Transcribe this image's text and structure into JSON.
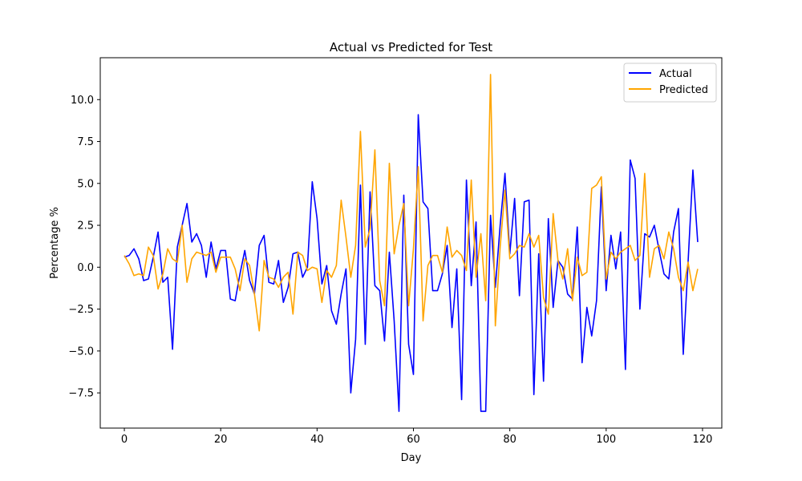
{
  "chart_data": {
    "type": "line",
    "title": "Actual vs Predicted for Test",
    "xlabel": "Day",
    "ylabel": "Percentage %",
    "xlim": [
      -5,
      124
    ],
    "ylim": [
      -9.6,
      12.5
    ],
    "xticks": [
      0,
      20,
      40,
      60,
      80,
      100,
      120
    ],
    "xtick_labels": [
      "0",
      "20",
      "40",
      "60",
      "80",
      "100",
      "120"
    ],
    "yticks": [
      -7.5,
      -5.0,
      -2.5,
      0.0,
      2.5,
      5.0,
      7.5,
      10.0
    ],
    "ytick_labels": [
      "−7.5",
      "−5.0",
      "−2.5",
      "0.0",
      "2.5",
      "5.0",
      "7.5",
      "10.0"
    ],
    "grid": false,
    "legend_position": "top-right",
    "series": [
      {
        "name": "Actual",
        "color": "#0000ff",
        "values": [
          0.6,
          0.7,
          1.1,
          0.5,
          -0.8,
          -0.7,
          0.6,
          2.1,
          -0.9,
          -0.6,
          -4.9,
          1.2,
          2.5,
          3.8,
          1.5,
          2.0,
          1.3,
          -0.6,
          1.5,
          -0.1,
          1.0,
          1.0,
          -1.9,
          -2.0,
          -0.4,
          1.0,
          -0.8,
          -1.6,
          1.3,
          1.9,
          -0.9,
          -1.0,
          0.4,
          -2.1,
          -1.2,
          0.8,
          0.9,
          -0.6,
          0.0,
          5.1,
          2.9,
          -1.0,
          0.1,
          -2.6,
          -3.4,
          -1.6,
          -0.1,
          -7.5,
          -4.3,
          4.9,
          -4.6,
          4.5,
          -1.1,
          -1.4,
          -4.4,
          0.9,
          -3.2,
          -8.6,
          4.3,
          -4.6,
          -6.4,
          9.1,
          3.9,
          3.5,
          -1.4,
          -1.4,
          -0.4,
          1.3,
          -3.6,
          -0.1,
          -7.9,
          5.2,
          -1.1,
          2.7,
          -8.6,
          -8.6,
          3.1,
          -1.2,
          2.5,
          5.6,
          0.8,
          4.1,
          -1.7,
          3.9,
          4.0,
          -7.6,
          0.8,
          -6.8,
          2.9,
          -2.4,
          0.4,
          0.0,
          -1.6,
          -1.9,
          2.4,
          -5.7,
          -2.4,
          -4.1,
          -2.0,
          4.8,
          -1.4,
          1.9,
          -0.1,
          2.1,
          -6.1,
          6.4,
          5.3,
          -2.5,
          2.0,
          1.8,
          2.5,
          1.0,
          -0.4,
          -0.7,
          2.1,
          3.5,
          -5.2,
          0.3,
          5.8,
          1.5
        ]
      },
      {
        "name": "Predicted",
        "color": "#ffa500",
        "values": [
          0.7,
          0.2,
          -0.5,
          -0.4,
          -0.5,
          1.2,
          0.7,
          -1.3,
          -0.4,
          1.1,
          0.5,
          0.3,
          2.5,
          -0.9,
          0.5,
          0.9,
          0.8,
          0.7,
          0.9,
          -0.3,
          0.6,
          0.6,
          0.6,
          -0.1,
          -1.4,
          0.5,
          0.1,
          -1.6,
          -3.8,
          0.4,
          -0.6,
          -0.7,
          -1.2,
          -0.6,
          -0.3,
          -2.8,
          0.9,
          0.7,
          -0.2,
          0.0,
          -0.1,
          -2.1,
          -0.2,
          -0.6,
          0.1,
          4.0,
          1.8,
          -0.6,
          1.3,
          8.1,
          1.2,
          2.3,
          7.0,
          -0.8,
          -2.3,
          6.2,
          0.8,
          2.5,
          3.8,
          -2.3,
          1.1,
          6.0,
          -3.2,
          0.1,
          0.7,
          0.7,
          -0.3,
          2.4,
          0.6,
          1.0,
          0.7,
          -0.2,
          5.2,
          -0.6,
          2.0,
          -2.0,
          11.5,
          -3.5,
          1.2,
          4.6,
          0.5,
          0.8,
          1.3,
          1.2,
          2.0,
          1.2,
          1.9,
          -1.8,
          -2.8,
          3.2,
          0.4,
          -0.7,
          1.1,
          -2.0,
          0.6,
          -0.5,
          -0.3,
          4.7,
          4.9,
          5.4,
          -0.7,
          0.9,
          0.5,
          0.9,
          1.1,
          1.3,
          0.4,
          0.7,
          5.6,
          -0.6,
          1.1,
          1.3,
          0.5,
          2.1,
          1.1,
          -0.6,
          -1.4,
          0.3,
          -1.4,
          -0.1
        ]
      }
    ]
  }
}
